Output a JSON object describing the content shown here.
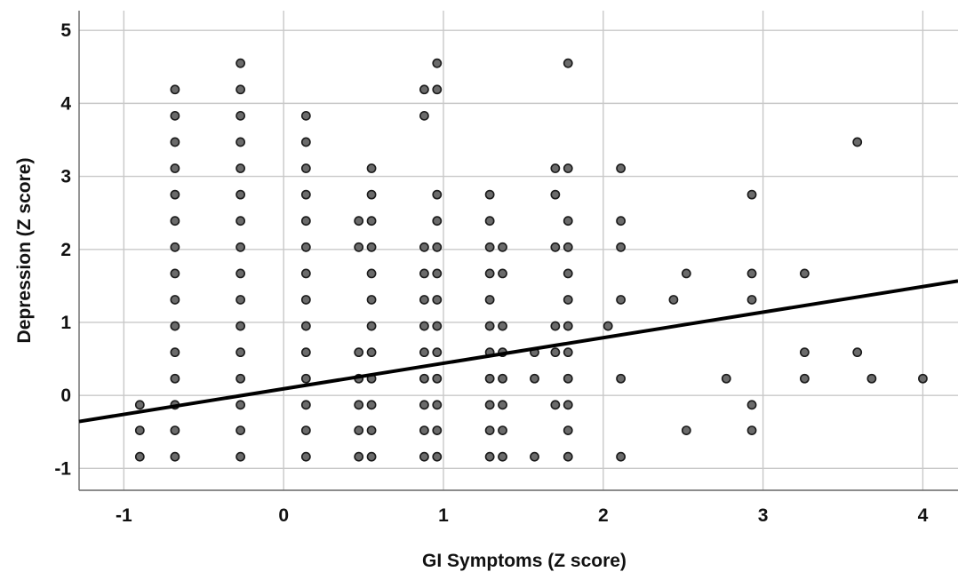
{
  "chart_data": {
    "type": "scatter",
    "title": "",
    "xlabel": "GI Symptoms (Z score)",
    "ylabel": "Depression (Z score)",
    "xlim": [
      -1.28,
      4.22
    ],
    "ylim": [
      -1.3,
      5.27
    ],
    "xticks": [
      -1,
      0,
      1,
      2,
      3,
      4
    ],
    "yticks": [
      -1,
      0,
      1,
      2,
      3,
      4,
      5
    ],
    "xtick_labels": [
      "-1",
      "0",
      "1",
      "2",
      "3",
      "4"
    ],
    "ytick_labels": [
      "-1",
      "0",
      "1",
      "2",
      "3",
      "4",
      "5"
    ],
    "grid": true,
    "fit_line": {
      "slope": 0.35,
      "intercept": 0.09
    },
    "x_columns": [
      {
        "x": -0.9,
        "y": [
          -0.84,
          -0.48,
          -0.13
        ]
      },
      {
        "x": -0.68,
        "y": [
          -0.84,
          -0.48,
          -0.13,
          0.23,
          0.59,
          0.95,
          1.31,
          1.67,
          2.03,
          2.39,
          2.75,
          3.11,
          3.47,
          3.83,
          4.19
        ]
      },
      {
        "x": -0.27,
        "y": [
          -0.84,
          -0.48,
          -0.13,
          0.23,
          0.59,
          0.95,
          1.31,
          1.67,
          2.03,
          2.39,
          2.75,
          3.11,
          3.47,
          3.83,
          4.19,
          4.55
        ]
      },
      {
        "x": 0.14,
        "y": [
          -0.84,
          -0.48,
          -0.13,
          0.23,
          0.59,
          0.95,
          1.31,
          1.67,
          2.03,
          2.39,
          2.75,
          3.11,
          3.47,
          3.83
        ]
      },
      {
        "x": 0.47,
        "y": [
          -0.84,
          -0.48,
          -0.13,
          0.23,
          0.59,
          2.03,
          2.39
        ]
      },
      {
        "x": 0.55,
        "y": [
          -0.84,
          -0.48,
          -0.13,
          0.23,
          0.59,
          0.95,
          1.31,
          1.67,
          2.03,
          2.39,
          2.75,
          3.11
        ]
      },
      {
        "x": 0.88,
        "y": [
          -0.84,
          -0.48,
          -0.13,
          0.23,
          0.59,
          0.95,
          1.31,
          1.67,
          2.03,
          3.83,
          4.19
        ]
      },
      {
        "x": 0.96,
        "y": [
          -0.84,
          -0.48,
          -0.13,
          0.23,
          0.59,
          0.95,
          1.31,
          1.67,
          2.03,
          2.39,
          2.75,
          4.19,
          4.55
        ]
      },
      {
        "x": 1.29,
        "y": [
          -0.84,
          -0.48,
          -0.13,
          0.23,
          0.59,
          0.95,
          1.31,
          1.67,
          2.03,
          2.39,
          2.75
        ]
      },
      {
        "x": 1.37,
        "y": [
          -0.84,
          -0.48,
          -0.13,
          0.23,
          0.59,
          0.95,
          1.67,
          2.03
        ]
      },
      {
        "x": 1.57,
        "y": [
          -0.84,
          0.23,
          0.59
        ]
      },
      {
        "x": 1.7,
        "y": [
          -0.13,
          0.59,
          0.95,
          2.03,
          2.75,
          3.11
        ]
      },
      {
        "x": 1.78,
        "y": [
          -0.84,
          -0.48,
          -0.13,
          0.23,
          0.59,
          0.95,
          1.31,
          1.67,
          2.03,
          2.39,
          3.11,
          4.55
        ]
      },
      {
        "x": 2.03,
        "y": [
          0.95
        ]
      },
      {
        "x": 2.11,
        "y": [
          -0.84,
          0.23,
          1.31,
          2.03,
          2.39,
          3.11
        ]
      },
      {
        "x": 2.44,
        "y": [
          1.31
        ]
      },
      {
        "x": 2.52,
        "y": [
          -0.48,
          1.67
        ]
      },
      {
        "x": 2.77,
        "y": [
          0.23
        ]
      },
      {
        "x": 2.93,
        "y": [
          -0.48,
          -0.13,
          1.31,
          1.67,
          2.75
        ]
      },
      {
        "x": 3.26,
        "y": [
          0.23,
          0.59,
          1.67
        ]
      },
      {
        "x": 3.59,
        "y": [
          0.59,
          3.47
        ]
      },
      {
        "x": 3.68,
        "y": [
          0.23
        ]
      },
      {
        "x": 4.0,
        "y": [
          0.23
        ]
      }
    ]
  }
}
